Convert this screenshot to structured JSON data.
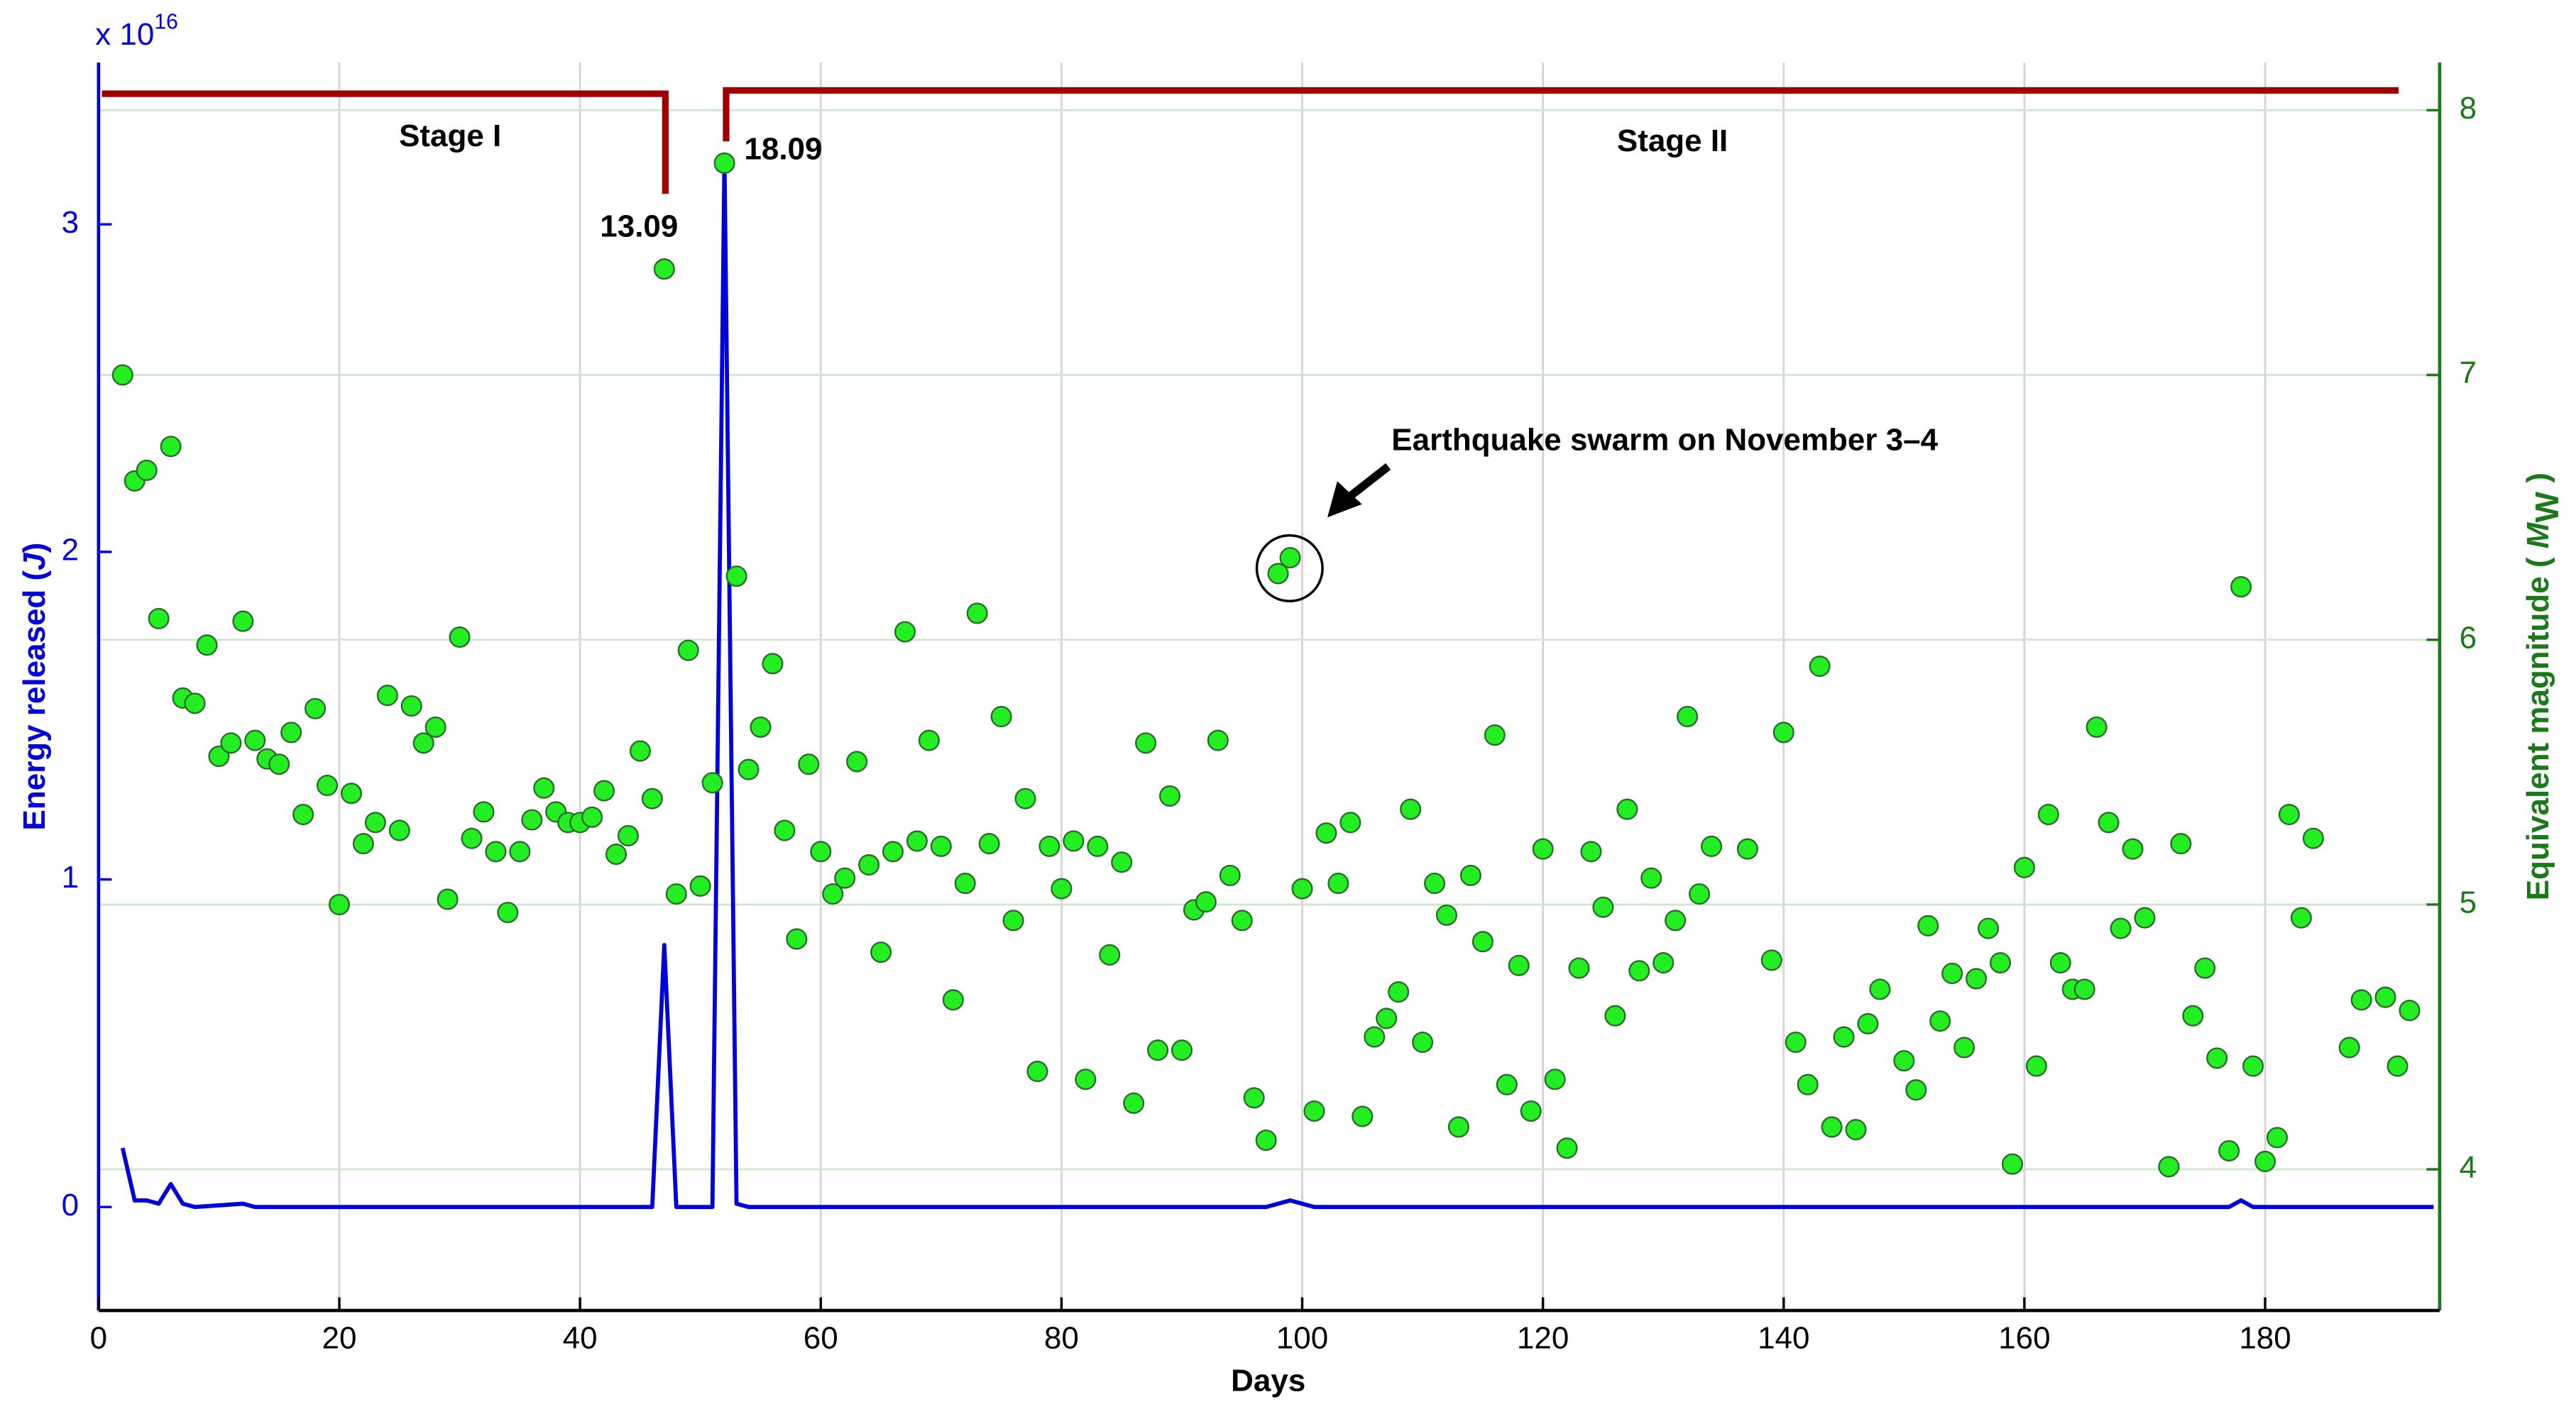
{
  "chart_data": {
    "type": "line+scatter",
    "y_multiplier": "x 10",
    "y_exponent": 16,
    "xlabel": "Days",
    "ylabel_parts": [
      "Energy released (",
      "J",
      ")"
    ],
    "y2label_parts": [
      "Equivalent magnitude ( ",
      "M",
      "W",
      " )"
    ],
    "xlim": [
      0,
      194.5
    ],
    "xticks": [
      0,
      20,
      40,
      60,
      80,
      100,
      120,
      140,
      160,
      180
    ],
    "ylim": [
      -0.316,
      3.494
    ],
    "yticks": [
      0,
      1,
      2,
      3
    ],
    "y2lim": [
      3.467,
      8.18
    ],
    "y2ticks": [
      4,
      5,
      6,
      7,
      8
    ],
    "grid": true,
    "annotations": {
      "stage1": "Stage I",
      "stage2": "Stage II",
      "date1": "13.09",
      "date2": "18.09",
      "swarm": "Earthquake swarm on November 3–4"
    },
    "series": [
      {
        "name": "Energy released",
        "kind": "line",
        "color": "#0000dd",
        "x": [
          2,
          3,
          4,
          5,
          6,
          7,
          8,
          12,
          13,
          46,
          47,
          48,
          50,
          51,
          52,
          53,
          54,
          97,
          99,
          101,
          177,
          178,
          179,
          194
        ],
        "values": [
          0.18,
          0.02,
          0.02,
          0.01,
          0.07,
          0.01,
          0.0,
          0.01,
          0.0,
          0.0,
          0.8,
          0.0,
          0.0,
          0.0,
          3.2,
          0.01,
          0.0,
          0.0,
          0.02,
          0.0,
          0.0,
          0.02,
          0.0,
          0.0
        ]
      },
      {
        "name": "Equivalent magnitude",
        "kind": "scatter",
        "axis": "y2",
        "color": "#22ee22",
        "x": [
          2,
          3,
          4,
          5,
          6,
          7,
          8,
          9,
          10,
          11,
          12,
          13,
          14,
          15,
          16,
          17,
          18,
          19,
          20,
          21,
          22,
          23,
          24,
          25,
          26,
          27,
          28,
          29,
          30,
          31,
          32,
          33,
          34,
          35,
          36,
          37,
          38,
          39,
          40,
          41,
          42,
          43,
          44,
          45,
          46,
          47,
          48,
          49,
          50,
          51,
          52,
          53,
          54,
          55,
          56,
          57,
          58,
          59,
          60,
          61,
          62,
          63,
          64,
          65,
          66,
          67,
          68,
          69,
          70,
          71,
          72,
          73,
          74,
          75,
          76,
          77,
          78,
          79,
          80,
          81,
          82,
          83,
          84,
          85,
          86,
          87,
          88,
          89,
          90,
          91,
          92,
          93,
          94,
          95,
          96,
          97,
          98,
          99,
          100,
          101,
          102,
          103,
          104,
          105,
          106,
          107,
          108,
          109,
          110,
          111,
          112,
          113,
          114,
          115,
          116,
          117,
          118,
          119,
          120,
          121,
          122,
          123,
          124,
          125,
          126,
          127,
          128,
          129,
          130,
          131,
          132,
          133,
          134,
          137,
          139,
          140,
          141,
          142,
          143,
          144,
          145,
          146,
          147,
          148,
          150,
          151,
          152,
          153,
          154,
          155,
          156,
          157,
          158,
          159,
          160,
          161,
          162,
          163,
          164,
          165,
          166,
          167,
          168,
          169,
          170,
          172,
          173,
          174,
          175,
          176,
          177,
          178,
          179,
          180,
          181,
          182,
          183,
          184,
          187,
          188,
          190,
          191,
          192
        ],
        "values": [
          7.0,
          6.6,
          6.64,
          6.08,
          6.73,
          5.78,
          5.76,
          5.98,
          5.56,
          5.61,
          6.07,
          5.62,
          5.55,
          5.53,
          5.65,
          5.34,
          5.74,
          5.45,
          5.0,
          5.42,
          5.23,
          5.31,
          5.79,
          5.28,
          5.75,
          5.61,
          5.67,
          5.02,
          6.01,
          5.25,
          5.35,
          5.2,
          4.97,
          5.2,
          5.32,
          5.44,
          5.35,
          5.31,
          5.31,
          5.33,
          5.43,
          5.19,
          5.26,
          5.58,
          5.4,
          7.4,
          5.04,
          5.96,
          5.07,
          5.46,
          7.8,
          6.24,
          5.51,
          5.67,
          5.91,
          5.28,
          4.87,
          5.53,
          5.2,
          5.04,
          5.1,
          5.54,
          5.15,
          4.82,
          5.2,
          6.03,
          5.24,
          5.62,
          5.22,
          4.64,
          5.08,
          6.1,
          5.23,
          5.71,
          4.94,
          5.4,
          4.37,
          5.22,
          5.06,
          5.24,
          4.34,
          5.22,
          4.81,
          5.16,
          4.25,
          5.61,
          4.45,
          5.41,
          4.45,
          4.98,
          5.01,
          5.62,
          5.11,
          4.94,
          4.27,
          4.11,
          6.25,
          6.31,
          5.06,
          4.22,
          5.27,
          5.08,
          5.31,
          4.2,
          4.5,
          4.57,
          4.67,
          5.36,
          4.48,
          5.08,
          4.96,
          4.16,
          5.11,
          4.86,
          5.64,
          4.32,
          4.77,
          4.22,
          5.21,
          4.34,
          4.08,
          4.76,
          5.2,
          4.99,
          4.58,
          5.36,
          4.75,
          5.1,
          4.78,
          4.94,
          5.71,
          5.04,
          5.22,
          5.21,
          4.79,
          5.65,
          4.48,
          4.32,
          5.9,
          4.16,
          4.5,
          4.15,
          4.55,
          4.68,
          4.41,
          4.3,
          4.92,
          4.56,
          4.74,
          4.46,
          4.72,
          4.91,
          4.78,
          4.02,
          5.14,
          4.39,
          5.34,
          4.78,
          4.68,
          4.68,
          5.67,
          5.31,
          4.91,
          5.21,
          4.95,
          4.01,
          5.23,
          4.58,
          4.76,
          4.42,
          4.07,
          6.2,
          4.39,
          4.03,
          4.12,
          5.34,
          4.95,
          5.25,
          4.46,
          4.64,
          4.65,
          4.39,
          4.6
        ]
      }
    ]
  }
}
